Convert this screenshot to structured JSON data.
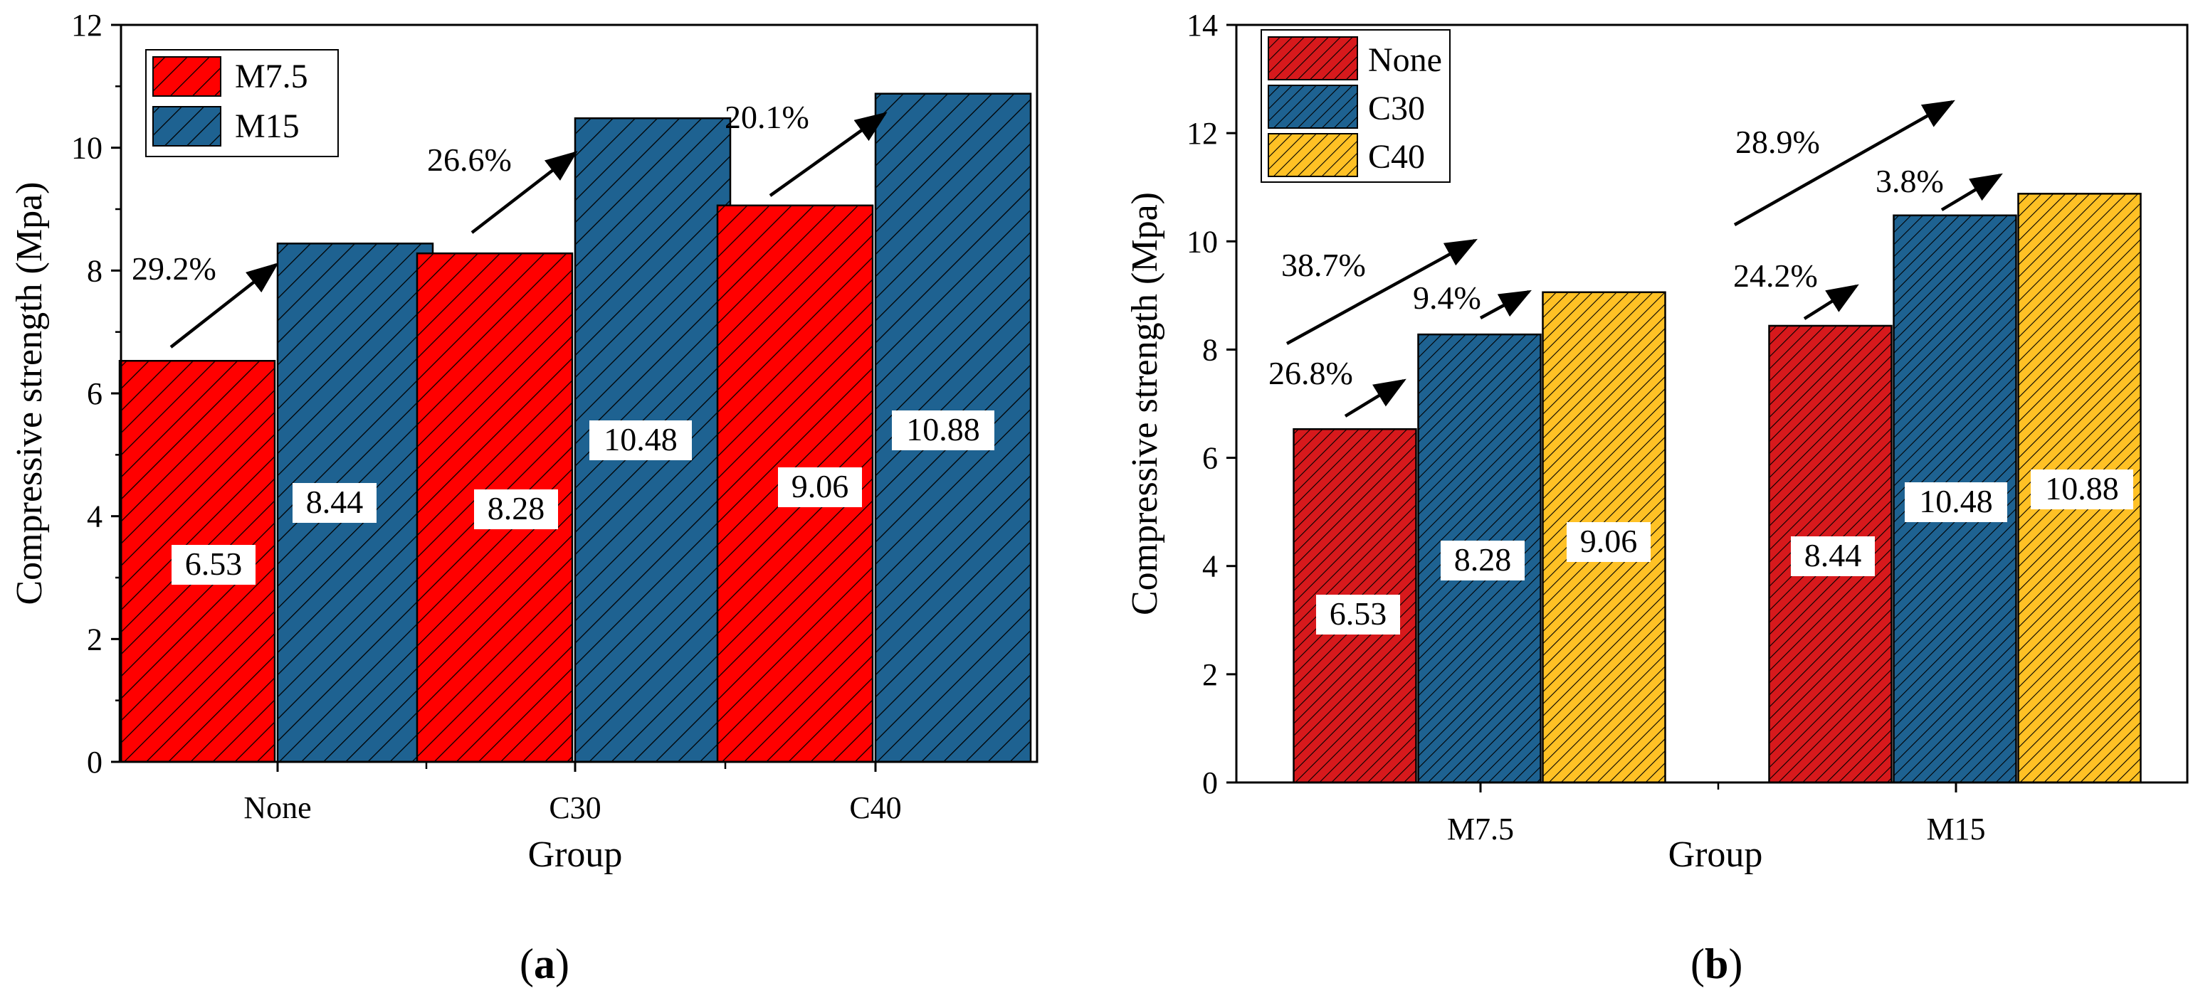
{
  "chart_data": [
    {
      "type": "bar",
      "categories": [
        "None",
        "C30",
        "C40"
      ],
      "series": [
        {
          "name": "M7.5",
          "values": [
            6.53,
            8.28,
            9.06
          ],
          "color": "#ff0000",
          "value_labels": [
            "6.53",
            "8.28",
            "9.06"
          ]
        },
        {
          "name": "M15",
          "values": [
            8.44,
            10.48,
            10.88
          ],
          "color": "#1e6291",
          "value_labels": [
            "8.44",
            "10.48",
            "10.88"
          ]
        }
      ],
      "xlabel": "Group",
      "ylabel": "Compressive strength (Mpa)",
      "ylim": [
        0,
        12
      ],
      "yticks": [
        "0",
        "2",
        "4",
        "6",
        "8",
        "10",
        "12"
      ],
      "legend_placement": "top-left",
      "annotations": [
        {
          "text": "29.2%",
          "category": "None",
          "from": "M7.5",
          "to": "M15"
        },
        {
          "text": "26.6%",
          "category": "C30",
          "from": "M7.5",
          "to": "M15"
        },
        {
          "text": "20.1%",
          "category": "C40",
          "from": "M7.5",
          "to": "M15"
        }
      ],
      "panel_label": "(a)"
    },
    {
      "type": "bar",
      "categories": [
        "M7.5",
        "M15"
      ],
      "series": [
        {
          "name": "None",
          "values": [
            6.53,
            8.44
          ],
          "color": "#d7191c",
          "value_labels": [
            "6.53",
            "8.44"
          ]
        },
        {
          "name": "C30",
          "values": [
            8.28,
            10.48
          ],
          "color": "#1e6291",
          "value_labels": [
            "8.28",
            "10.48"
          ]
        },
        {
          "name": "C40",
          "values": [
            9.06,
            10.88
          ],
          "color": "#ffc125",
          "value_labels": [
            "9.06",
            "10.88"
          ]
        }
      ],
      "xlabel": "Group",
      "ylabel": "Compressive strength (Mpa)",
      "ylim": [
        0,
        14
      ],
      "yticks": [
        "0",
        "2",
        "4",
        "6",
        "8",
        "10",
        "12",
        "14"
      ],
      "legend_placement": "top-left",
      "annotations": [
        {
          "text": "26.8%",
          "category": "M7.5",
          "from": "None",
          "to": "C30"
        },
        {
          "text": "9.4%",
          "category": "M7.5",
          "from": "C30",
          "to": "C40"
        },
        {
          "text": "38.7%",
          "category": "M7.5",
          "from": "None",
          "to": "C40"
        },
        {
          "text": "24.2%",
          "category": "M15",
          "from": "None",
          "to": "C30"
        },
        {
          "text": "3.8%",
          "category": "M15",
          "from": "C30",
          "to": "C40"
        },
        {
          "text": "28.9%",
          "category": "M15",
          "from": "None",
          "to": "C40"
        }
      ],
      "panel_label": "(b)"
    }
  ]
}
